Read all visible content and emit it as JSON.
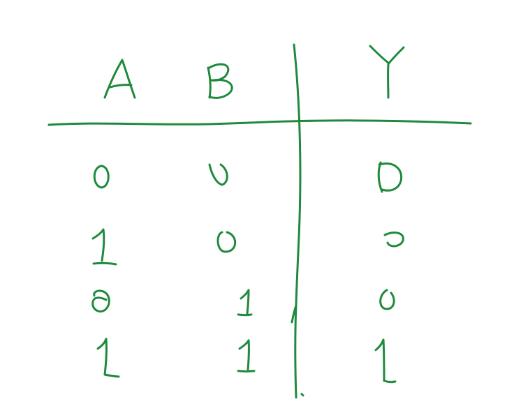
{
  "ink_color": "#1f8a3c",
  "table": {
    "headers": [
      "A",
      "B",
      "Y"
    ],
    "rows": [
      [
        "0",
        "0",
        "0"
      ],
      [
        "1",
        "0",
        "0"
      ],
      [
        "0",
        "1",
        "0"
      ],
      [
        "1",
        "1",
        "1"
      ]
    ]
  }
}
